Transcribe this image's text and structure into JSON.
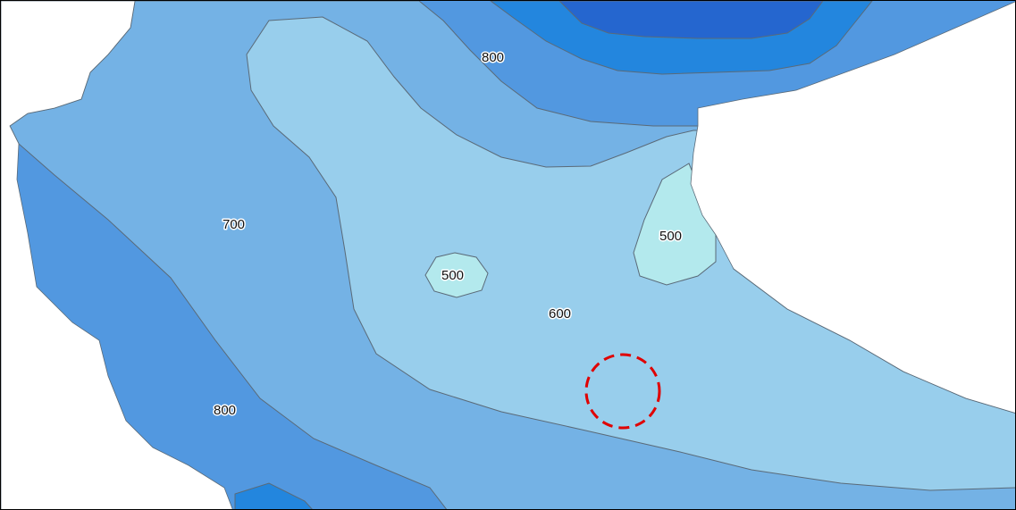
{
  "map": {
    "colors": {
      "band_500": "#b3e9ed",
      "band_600": "#98ceec",
      "band_700": "#74b2e5",
      "band_800": "#5298e0",
      "band_900": "#2386de",
      "band_1000": "#2566cf",
      "outside": "#ffffff",
      "contour_line": "#5a6a78",
      "marker": "#e00000"
    },
    "labels": {
      "top_800": "800",
      "left_700": "700",
      "center_500": "500",
      "right_500": "500",
      "center_600": "600",
      "bottom_left_800": "800"
    },
    "marker": {
      "shape": "dashed-circle"
    }
  }
}
